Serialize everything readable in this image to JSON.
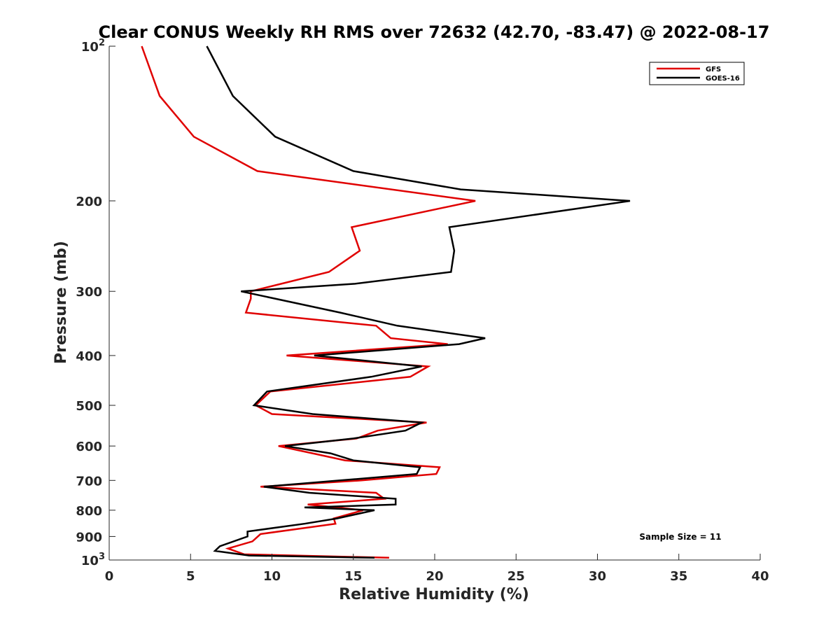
{
  "chart_data": {
    "type": "line",
    "title": "Clear CONUS Weekly RH RMS over 72632 (42.70, -83.47) @ 2022-08-17",
    "xlabel": "Relative Humidity (%)",
    "ylabel": "Pressure (mb)",
    "xlim": [
      0,
      40
    ],
    "ylim": [
      100,
      1000
    ],
    "yscale": "log",
    "yreversed": true,
    "xticks": [
      "0",
      "5",
      "10",
      "15",
      "20",
      "25",
      "30",
      "35",
      "40"
    ],
    "yticks": [
      {
        "value": 100,
        "label": "10",
        "sup": "2"
      },
      {
        "value": 200,
        "label": "200",
        "sup": ""
      },
      {
        "value": 300,
        "label": "300",
        "sup": ""
      },
      {
        "value": 400,
        "label": "400",
        "sup": ""
      },
      {
        "value": 500,
        "label": "500",
        "sup": ""
      },
      {
        "value": 600,
        "label": "600",
        "sup": ""
      },
      {
        "value": 700,
        "label": "700",
        "sup": ""
      },
      {
        "value": 800,
        "label": "800",
        "sup": ""
      },
      {
        "value": 900,
        "label": "900",
        "sup": ""
      },
      {
        "value": 1000,
        "label": "10",
        "sup": "3"
      }
    ],
    "grid": false,
    "legend_position": "top-right",
    "annotation": "Sample Size = 11",
    "series": [
      {
        "name": "GFS",
        "color": "#e00000",
        "points": [
          [
            2.0,
            100
          ],
          [
            3.1,
            125
          ],
          [
            5.2,
            150
          ],
          [
            9.1,
            175
          ],
          [
            22.5,
            200
          ],
          [
            14.9,
            225
          ],
          [
            15.4,
            250
          ],
          [
            13.5,
            275
          ],
          [
            8.7,
            300
          ],
          [
            8.7,
            310
          ],
          [
            8.4,
            330
          ],
          [
            16.4,
            350
          ],
          [
            17.3,
            370
          ],
          [
            20.8,
            380
          ],
          [
            10.9,
            400
          ],
          [
            19.6,
            420
          ],
          [
            18.5,
            440
          ],
          [
            9.9,
            470
          ],
          [
            9.0,
            500
          ],
          [
            10.0,
            520
          ],
          [
            19.5,
            540
          ],
          [
            16.5,
            560
          ],
          [
            15.2,
            580
          ],
          [
            10.4,
            600
          ],
          [
            12.5,
            620
          ],
          [
            14.5,
            640
          ],
          [
            20.3,
            660
          ],
          [
            20.1,
            680
          ],
          [
            15.5,
            700
          ],
          [
            9.3,
            720
          ],
          [
            16.4,
            740
          ],
          [
            16.9,
            760
          ],
          [
            12.2,
            780
          ],
          [
            15.6,
            800
          ],
          [
            13.8,
            830
          ],
          [
            13.9,
            850
          ],
          [
            9.3,
            890
          ],
          [
            8.8,
            920
          ],
          [
            7.3,
            950
          ],
          [
            8.3,
            975
          ],
          [
            17.2,
            990
          ]
        ]
      },
      {
        "name": "GOES-16",
        "color": "#000000",
        "points": [
          [
            6.0,
            100
          ],
          [
            7.6,
            125
          ],
          [
            10.2,
            150
          ],
          [
            15.0,
            175
          ],
          [
            21.6,
            190
          ],
          [
            32.0,
            200
          ],
          [
            20.9,
            225
          ],
          [
            21.2,
            250
          ],
          [
            21.0,
            275
          ],
          [
            15.1,
            290
          ],
          [
            8.1,
            300
          ],
          [
            14.2,
            330
          ],
          [
            17.7,
            350
          ],
          [
            23.1,
            370
          ],
          [
            21.5,
            380
          ],
          [
            12.6,
            400
          ],
          [
            19.2,
            420
          ],
          [
            16.1,
            440
          ],
          [
            9.7,
            470
          ],
          [
            8.9,
            500
          ],
          [
            12.5,
            520
          ],
          [
            19.2,
            540
          ],
          [
            18.2,
            560
          ],
          [
            15.0,
            580
          ],
          [
            10.8,
            600
          ],
          [
            13.6,
            620
          ],
          [
            15.0,
            640
          ],
          [
            19.1,
            660
          ],
          [
            18.9,
            680
          ],
          [
            14.2,
            700
          ],
          [
            9.5,
            720
          ],
          [
            12.3,
            740
          ],
          [
            17.6,
            760
          ],
          [
            17.6,
            780
          ],
          [
            12.0,
            790
          ],
          [
            16.3,
            800
          ],
          [
            14.0,
            830
          ],
          [
            12.0,
            850
          ],
          [
            8.5,
            880
          ],
          [
            8.5,
            900
          ],
          [
            6.8,
            940
          ],
          [
            6.5,
            960
          ],
          [
            8.6,
            980
          ],
          [
            16.3,
            990
          ]
        ]
      }
    ]
  }
}
